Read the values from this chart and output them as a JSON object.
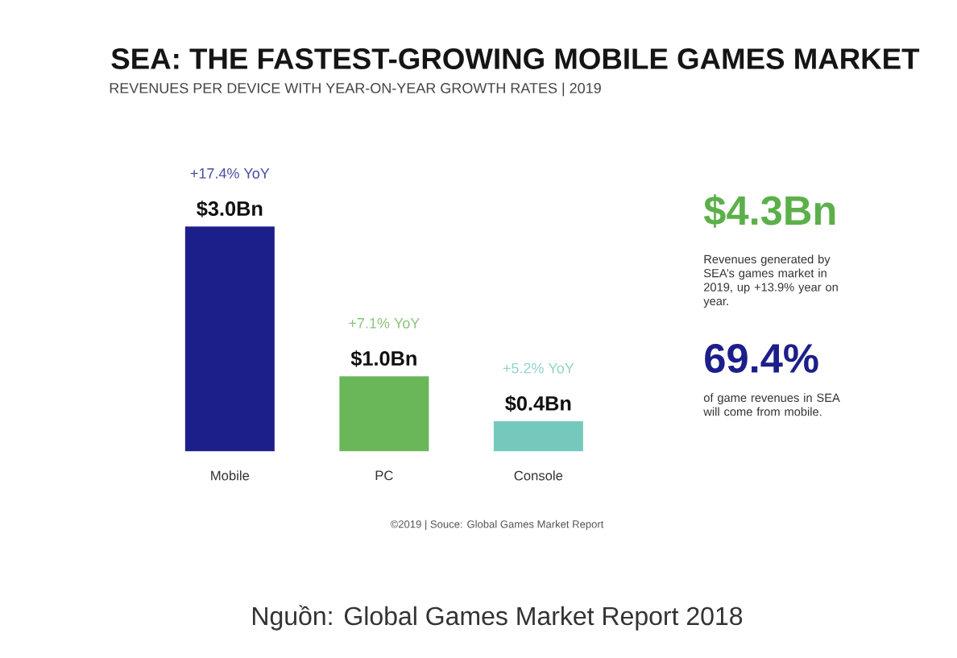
{
  "chart_data": [
    {
      "type": "bar",
      "title": "SEA: THE FASTEST-GROWING MOBILE GAMES MARKET",
      "subtitle": "REVENUES PER DEVICE WITH YEAR-ON-YEAR GROWTH RATES | 2019",
      "categories": [
        "Mobile",
        "PC",
        "Console"
      ],
      "values": [
        3.0,
        1.0,
        0.4
      ],
      "colors": [
        "#1c1f8a",
        "#6ab75a",
        "#74c9bc"
      ],
      "value_labels": [
        "$3.0Bn",
        "$1.0Bn",
        "$0.4Bn"
      ],
      "annotations": [
        "+17.4% YoY",
        "+7.1% YoY",
        "+5.2% YoY",
        "©2019 | Souce: Global Games Market Report",
        "Nguồn: Global Games Market Report 2018"
      ]
    },
    {
      "type": "other",
      "annotations": [
        "$4.3Bn",
        "Revenues generated by SEA’s games market in 2019, up +13.9% year on year.",
        "69.4%",
        "of game revenues in SEA will come from mobile."
      ]
    }
  ]
}
